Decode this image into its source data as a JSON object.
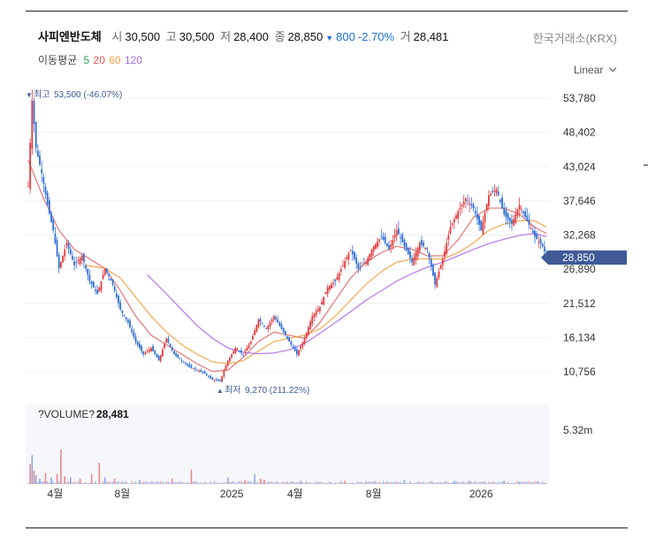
{
  "stock": {
    "name": "사피엔반도체",
    "open_label": "시",
    "open": "30,500",
    "high_label": "고",
    "high": "30,500",
    "low_label": "저",
    "low": "28,400",
    "close_label": "종",
    "close": "28,850",
    "change_arrow": "▼",
    "change": "800",
    "change_pct": "-2.70%",
    "volume_label": "거",
    "volume": "28,481",
    "exchange": "한국거래소(KRX)"
  },
  "moving_average": {
    "label": "이동평균",
    "periods": [
      {
        "period": "5",
        "color": "#2a9d5c"
      },
      {
        "period": "20",
        "color": "#e0554a"
      },
      {
        "period": "60",
        "color": "#f0a040"
      },
      {
        "period": "120",
        "color": "#a16ae8"
      }
    ]
  },
  "scale": {
    "label": "Linear"
  },
  "colors": {
    "up": "#e03a3e",
    "down": "#2f6fd6",
    "current_bg": "#3f5a96",
    "text_muted": "#555"
  },
  "chart_data": {
    "type": "candlestick",
    "price_axis_ticks": [
      "53,780",
      "48,402",
      "43,024",
      "37,646",
      "32,268",
      "26,890",
      "21,512",
      "16,134",
      "10,756"
    ],
    "price_axis_values": [
      53780,
      48402,
      43024,
      37646,
      32268,
      26890,
      21512,
      16134,
      10756
    ],
    "current_price": "28,850",
    "high_marker": {
      "arrow": "▼",
      "label": "최고",
      "value": "53,500 (-46.07%)",
      "price": 53500
    },
    "low_marker": {
      "arrow": "▲",
      "label": "최저",
      "value": "9,270 (211.22%)",
      "price": 9270
    },
    "x_tick_labels": [
      "4월",
      "8월",
      "2025",
      "4월",
      "8월",
      "2026"
    ],
    "price_series": [
      [
        0,
        40000
      ],
      [
        2,
        53500
      ],
      [
        4,
        46000
      ],
      [
        7,
        42000
      ],
      [
        10,
        37000
      ],
      [
        13,
        33000
      ],
      [
        16,
        27000
      ],
      [
        20,
        31000
      ],
      [
        24,
        27500
      ],
      [
        28,
        29000
      ],
      [
        32,
        25000
      ],
      [
        36,
        23000
      ],
      [
        40,
        27000
      ],
      [
        44,
        24500
      ],
      [
        48,
        20500
      ],
      [
        52,
        18500
      ],
      [
        56,
        15500
      ],
      [
        60,
        13500
      ],
      [
        64,
        14500
      ],
      [
        68,
        12500
      ],
      [
        72,
        16000
      ],
      [
        76,
        13500
      ],
      [
        80,
        12500
      ],
      [
        84,
        11500
      ],
      [
        88,
        11000
      ],
      [
        92,
        10500
      ],
      [
        96,
        9500
      ],
      [
        100,
        9270
      ],
      [
        104,
        12500
      ],
      [
        108,
        14500
      ],
      [
        112,
        13500
      ],
      [
        116,
        15500
      ],
      [
        120,
        19000
      ],
      [
        124,
        17500
      ],
      [
        128,
        19500
      ],
      [
        132,
        17500
      ],
      [
        136,
        15500
      ],
      [
        140,
        13500
      ],
      [
        144,
        16000
      ],
      [
        148,
        19500
      ],
      [
        152,
        21000
      ],
      [
        156,
        24000
      ],
      [
        160,
        25000
      ],
      [
        164,
        27500
      ],
      [
        168,
        30000
      ],
      [
        172,
        27000
      ],
      [
        176,
        28000
      ],
      [
        180,
        30500
      ],
      [
        184,
        32000
      ],
      [
        188,
        30000
      ],
      [
        192,
        33000
      ],
      [
        196,
        30500
      ],
      [
        200,
        28000
      ],
      [
        204,
        31000
      ],
      [
        208,
        30000
      ],
      [
        212,
        24500
      ],
      [
        216,
        28500
      ],
      [
        220,
        33500
      ],
      [
        224,
        36000
      ],
      [
        228,
        38000
      ],
      [
        232,
        36500
      ],
      [
        236,
        33000
      ],
      [
        240,
        38500
      ],
      [
        244,
        39500
      ],
      [
        248,
        35500
      ],
      [
        252,
        34000
      ],
      [
        256,
        37000
      ],
      [
        260,
        34500
      ],
      [
        264,
        32000
      ],
      [
        268,
        30500
      ],
      [
        270,
        28850
      ]
    ],
    "ma": [
      {
        "name": "20",
        "color": "#e06a6a",
        "points": [
          [
            0,
            44000
          ],
          [
            8,
            38000
          ],
          [
            16,
            33000
          ],
          [
            24,
            30000
          ],
          [
            32,
            28500
          ],
          [
            40,
            27000
          ],
          [
            48,
            23500
          ],
          [
            56,
            19500
          ],
          [
            64,
            16500
          ],
          [
            72,
            15000
          ],
          [
            80,
            13500
          ],
          [
            88,
            12000
          ],
          [
            96,
            10800
          ],
          [
            104,
            11000
          ],
          [
            112,
            13000
          ],
          [
            120,
            15500
          ],
          [
            128,
            17000
          ],
          [
            136,
            16500
          ],
          [
            144,
            16000
          ],
          [
            152,
            18500
          ],
          [
            160,
            22000
          ],
          [
            168,
            25500
          ],
          [
            176,
            28000
          ],
          [
            184,
            29500
          ],
          [
            192,
            30500
          ],
          [
            200,
            30000
          ],
          [
            208,
            29000
          ],
          [
            216,
            29000
          ],
          [
            224,
            31500
          ],
          [
            232,
            35000
          ],
          [
            240,
            36500
          ],
          [
            248,
            36500
          ],
          [
            256,
            35500
          ],
          [
            264,
            33500
          ],
          [
            270,
            32500
          ]
        ]
      },
      {
        "name": "60",
        "color": "#f0a040",
        "points": [
          [
            30,
            27500
          ],
          [
            40,
            27000
          ],
          [
            48,
            25500
          ],
          [
            56,
            22500
          ],
          [
            64,
            19500
          ],
          [
            72,
            17000
          ],
          [
            80,
            15000
          ],
          [
            88,
            13500
          ],
          [
            96,
            12300
          ],
          [
            104,
            12000
          ],
          [
            112,
            12500
          ],
          [
            120,
            14000
          ],
          [
            128,
            15500
          ],
          [
            136,
            16000
          ],
          [
            144,
            16500
          ],
          [
            152,
            17500
          ],
          [
            160,
            19500
          ],
          [
            168,
            22000
          ],
          [
            176,
            24500
          ],
          [
            184,
            26500
          ],
          [
            192,
            28000
          ],
          [
            200,
            28500
          ],
          [
            208,
            28500
          ],
          [
            216,
            28500
          ],
          [
            224,
            29500
          ],
          [
            232,
            31000
          ],
          [
            240,
            33000
          ],
          [
            248,
            34000
          ],
          [
            256,
            34500
          ],
          [
            264,
            34500
          ],
          [
            270,
            33500
          ]
        ]
      },
      {
        "name": "120",
        "color": "#b06ae8",
        "points": [
          [
            62,
            26000
          ],
          [
            72,
            23000
          ],
          [
            80,
            20500
          ],
          [
            88,
            18000
          ],
          [
            96,
            16000
          ],
          [
            104,
            14500
          ],
          [
            112,
            13800
          ],
          [
            120,
            13600
          ],
          [
            128,
            13700
          ],
          [
            136,
            14200
          ],
          [
            144,
            15200
          ],
          [
            152,
            16800
          ],
          [
            160,
            18500
          ],
          [
            168,
            20200
          ],
          [
            176,
            22000
          ],
          [
            184,
            23500
          ],
          [
            192,
            25000
          ],
          [
            200,
            26200
          ],
          [
            208,
            27200
          ],
          [
            216,
            28000
          ],
          [
            224,
            29000
          ],
          [
            232,
            30000
          ],
          [
            240,
            30900
          ],
          [
            248,
            31600
          ],
          [
            256,
            32200
          ],
          [
            264,
            32500
          ],
          [
            270,
            32000
          ]
        ]
      }
    ],
    "volume": {
      "title": "?VOLUME?",
      "value": "28,481",
      "axis_label": "5.32m",
      "bars": [
        [
          1,
          1.8
        ],
        [
          2,
          2.6
        ],
        [
          3,
          1.2
        ],
        [
          4,
          0.8
        ],
        [
          6,
          0.5
        ],
        [
          9,
          1.0
        ],
        [
          12,
          0.6
        ],
        [
          15,
          0.9
        ],
        [
          17,
          3.1
        ],
        [
          19,
          0.7
        ],
        [
          22,
          0.6
        ],
        [
          27,
          0.5
        ],
        [
          33,
          0.9
        ],
        [
          37,
          1.9
        ],
        [
          40,
          0.6
        ],
        [
          45,
          0.5
        ],
        [
          58,
          0.4
        ],
        [
          75,
          0.5
        ],
        [
          85,
          1.3
        ],
        [
          104,
          0.6
        ],
        [
          113,
          0.4
        ],
        [
          118,
          0.9
        ],
        [
          121,
          0.5
        ],
        [
          123,
          0.4
        ],
        [
          142,
          0.3
        ],
        [
          165,
          0.3
        ],
        [
          196,
          0.4
        ],
        [
          222,
          0.3
        ],
        [
          230,
          0.3
        ],
        [
          248,
          0.3
        ],
        [
          256,
          0.2
        ]
      ]
    }
  }
}
